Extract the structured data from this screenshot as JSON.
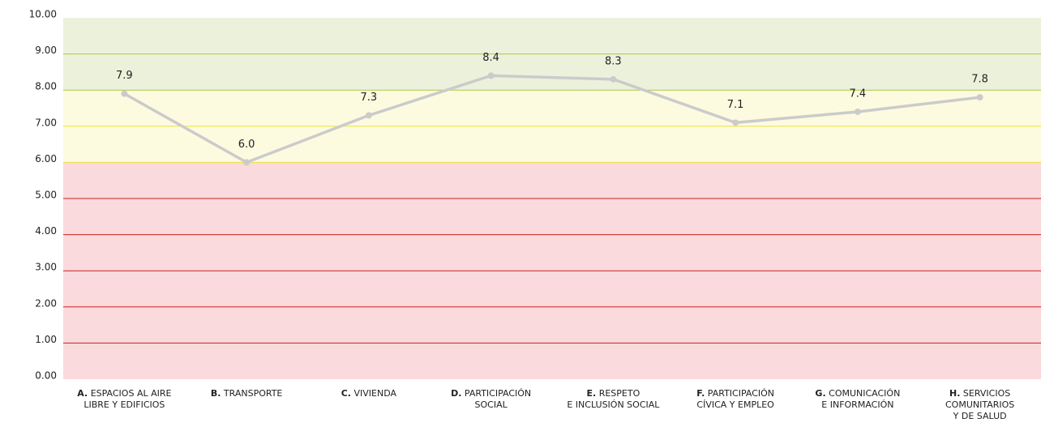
{
  "chart_data": {
    "type": "line",
    "categories": [
      {
        "prefix": "A.",
        "lines": [
          "ESPACIOS AL AIRE",
          "LIBRE Y EDIFICIOS"
        ]
      },
      {
        "prefix": "B.",
        "lines": [
          "TRANSPORTE"
        ]
      },
      {
        "prefix": "C.",
        "lines": [
          "VIVIENDA"
        ]
      },
      {
        "prefix": "D.",
        "lines": [
          "PARTICIPACIÓN",
          "SOCIAL"
        ]
      },
      {
        "prefix": "E.",
        "lines": [
          "RESPETO",
          "E INCLUSIÓN SOCIAL"
        ]
      },
      {
        "prefix": "F.",
        "lines": [
          "PARTICIPACIÓN",
          "CÍVICA Y EMPLEO"
        ]
      },
      {
        "prefix": "G.",
        "lines": [
          "COMUNICACIÓN",
          "E INFORMACIÓN"
        ]
      },
      {
        "prefix": "H.",
        "lines": [
          "SERVICIOS",
          "COMUNITARIOS",
          "Y DE SALUD"
        ]
      }
    ],
    "values": [
      7.9,
      6.0,
      7.3,
      8.4,
      8.3,
      7.1,
      7.4,
      7.8
    ],
    "value_labels": [
      "7.9",
      "6.0",
      "7.3",
      "8.4",
      "8.3",
      "7.1",
      "7.4",
      "7.8"
    ],
    "color": "#cbcbcb",
    "ylim": [
      0,
      10
    ],
    "yticks": [
      {
        "value": 0,
        "label": "0.00"
      },
      {
        "value": 1,
        "label": "1.00"
      },
      {
        "value": 2,
        "label": "2.00"
      },
      {
        "value": 3,
        "label": "3.00"
      },
      {
        "value": 4,
        "label": "4.00"
      },
      {
        "value": 5,
        "label": "5.00"
      },
      {
        "value": 6,
        "label": "6.00"
      },
      {
        "value": 7,
        "label": "7.00"
      },
      {
        "value": 8,
        "label": "8.00"
      },
      {
        "value": 9,
        "label": "9.00"
      },
      {
        "value": 10,
        "label": "10.00"
      }
    ],
    "bands": [
      {
        "from": 0,
        "to": 6,
        "color": "#fadadd",
        "grid_color": "#cc1f1f"
      },
      {
        "from": 6,
        "to": 8,
        "color": "#fcfbe0",
        "grid_color": "#e9e33a"
      },
      {
        "from": 8,
        "to": 10,
        "color": "#ecf1dc",
        "grid_color": "#a8c94a"
      }
    ],
    "grid": true
  }
}
